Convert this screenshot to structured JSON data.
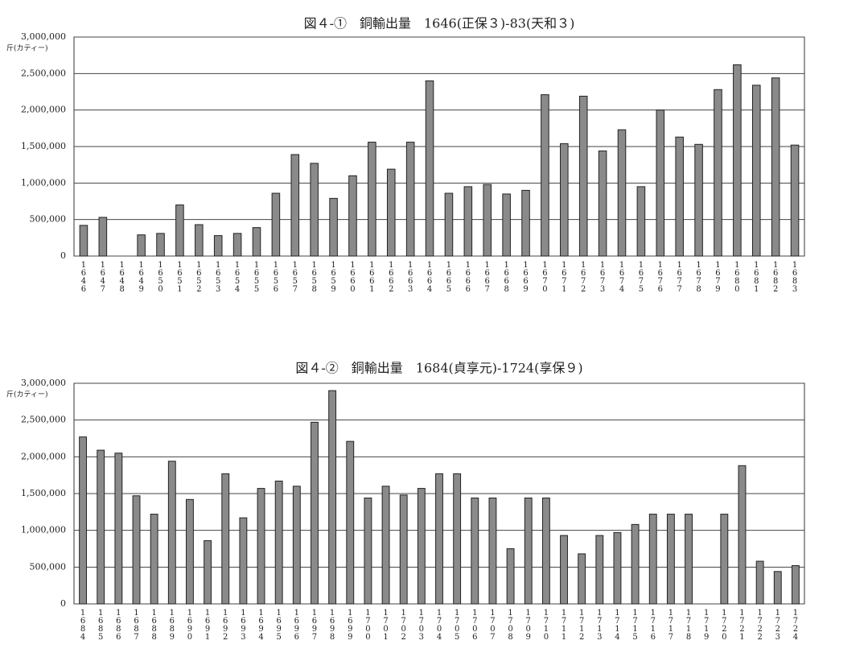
{
  "chart_data": [
    {
      "type": "bar",
      "title": "図４-①　銅輸出量　1646(正保３)-83(天和３)",
      "y_label": "斤(カティー)",
      "categories": [
        "1646",
        "1647",
        "1648",
        "1649",
        "1650",
        "1651",
        "1652",
        "1653",
        "1654",
        "1655",
        "1656",
        "1657",
        "1658",
        "1659",
        "1660",
        "1661",
        "1662",
        "1663",
        "1664",
        "1665",
        "1666",
        "1667",
        "1668",
        "1669",
        "1670",
        "1671",
        "1672",
        "1673",
        "1674",
        "1675",
        "1676",
        "1677",
        "1678",
        "1679",
        "1680",
        "1681",
        "1682",
        "1683"
      ],
      "values": [
        420000,
        530000,
        0,
        290000,
        310000,
        700000,
        430000,
        280000,
        310000,
        390000,
        860000,
        1390000,
        1270000,
        790000,
        1100000,
        1560000,
        1190000,
        1560000,
        2400000,
        860000,
        950000,
        980000,
        850000,
        900000,
        2210000,
        1540000,
        2190000,
        1440000,
        1730000,
        950000,
        2000000,
        1630000,
        1530000,
        2280000,
        2620000,
        2340000,
        2440000,
        1520000
      ],
      "color": "#8a8a8a",
      "ylim": [
        0,
        3000000
      ],
      "yticks": [
        0,
        {
          "value": 500000,
          "label": "500,000"
        },
        {
          "value": 1000000,
          "label": "1,000,000"
        },
        {
          "value": 1500000,
          "label": "1,500,000"
        },
        {
          "value": 2000000,
          "label": "2,000,000"
        },
        {
          "value": 2500000,
          "label": "2,500,000"
        },
        {
          "value": 3000000,
          "label": "3,000,000"
        }
      ],
      "grid": true
    },
    {
      "type": "bar",
      "title": "図４-②　銅輸出量　1684(貞享元)-1724(享保９)",
      "y_label": "斤(カティー)",
      "categories": [
        "1684",
        "1685",
        "1686",
        "1687",
        "1688",
        "1689",
        "1690",
        "1691",
        "1692",
        "1693",
        "1694",
        "1695",
        "1696",
        "1697",
        "1698",
        "1699",
        "1700",
        "1701",
        "1702",
        "1703",
        "1704",
        "1705",
        "1706",
        "1707",
        "1708",
        "1709",
        "1710",
        "1711",
        "1712",
        "1713",
        "1714",
        "1715",
        "1716",
        "1717",
        "1718",
        "1719",
        "1720",
        "1721",
        "1722",
        "1723",
        "1724"
      ],
      "values": [
        2270000,
        2090000,
        2050000,
        1470000,
        1220000,
        1940000,
        1420000,
        860000,
        1770000,
        1170000,
        1570000,
        1670000,
        1600000,
        2470000,
        2900000,
        2210000,
        1440000,
        1600000,
        1480000,
        1570000,
        1770000,
        1770000,
        1440000,
        1440000,
        750000,
        1440000,
        1440000,
        930000,
        680000,
        930000,
        970000,
        1080000,
        1220000,
        1220000,
        1220000,
        0,
        1220000,
        1880000,
        580000,
        440000,
        520000
      ],
      "color": "#8a8a8a",
      "ylim": [
        0,
        3000000
      ],
      "yticks": [
        0,
        {
          "value": 500000,
          "label": "500,000"
        },
        {
          "value": 1000000,
          "label": "1,000,000"
        },
        {
          "value": 1500000,
          "label": "1,500,000"
        },
        {
          "value": 2000000,
          "label": "2,000,000"
        },
        {
          "value": 2500000,
          "label": "2,500,000"
        },
        {
          "value": 3000000,
          "label": "3,000,000"
        }
      ],
      "grid": true
    }
  ]
}
